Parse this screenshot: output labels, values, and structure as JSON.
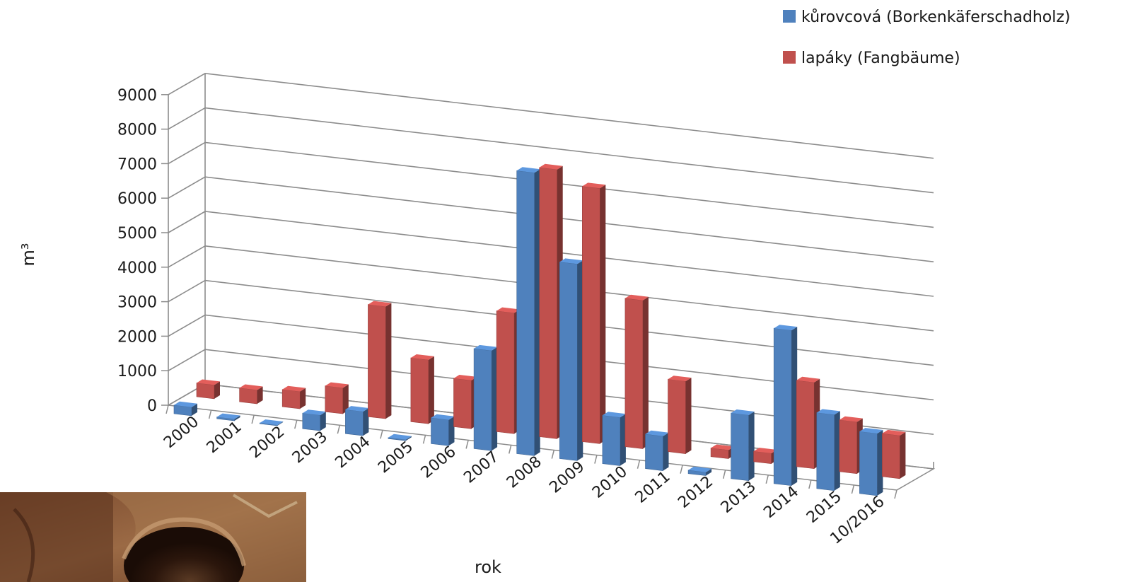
{
  "chart_data": {
    "type": "bar",
    "categories": [
      "2000",
      "2001",
      "2002",
      "2003",
      "2004",
      "2005",
      "2006",
      "2007",
      "2008",
      "2009",
      "2010",
      "2011",
      "2012",
      "2013",
      "2014",
      "2015",
      "10/2016"
    ],
    "series": [
      {
        "name": "kůrovcová (Borkenkäferschadholz)",
        "color": "#4f81bd",
        "values": [
          250,
          50,
          20,
          450,
          700,
          30,
          750,
          2900,
          8200,
          5700,
          1400,
          1000,
          100,
          1900,
          4500,
          2200,
          1800
        ]
      },
      {
        "name": "lapáky  (Fangbäume)",
        "color": "#c0504d",
        "values": [
          400,
          400,
          500,
          750,
          3250,
          1850,
          1400,
          3500,
          7800,
          7400,
          4300,
          2100,
          250,
          300,
          2500,
          1500,
          1250
        ]
      }
    ],
    "xlabel": "rok",
    "ylabel": "m³",
    "ylim": [
      0,
      9000
    ],
    "yticks": [
      0,
      1000,
      2000,
      3000,
      4000,
      5000,
      6000,
      7000,
      8000,
      9000
    ],
    "legend_position": "top-right",
    "grid": true,
    "style": "3d-clustered-column"
  }
}
